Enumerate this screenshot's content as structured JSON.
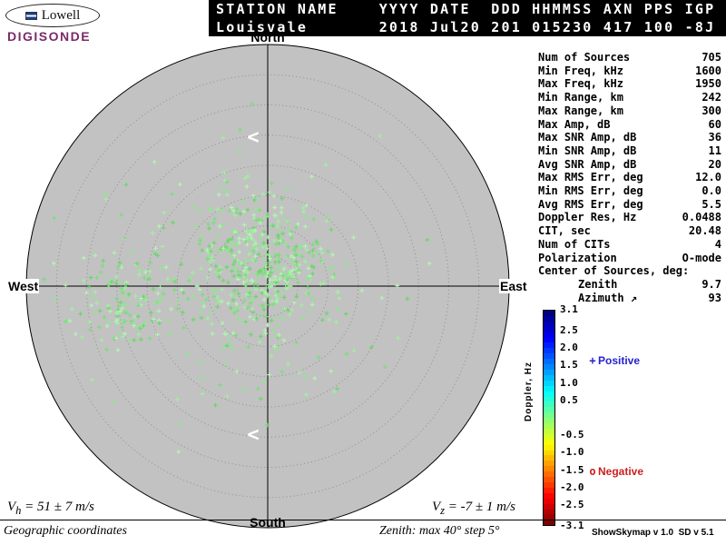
{
  "logo": {
    "name": "Lowell",
    "product": "DIGISONDE",
    "accent_color": "#7a2a68"
  },
  "header": {
    "bg_color": "#000000",
    "line1": "STATION NAME    YYYY DATE  DDD HHMMSS AXN PPS IGP",
    "line2": "Louisvale       2018 Jul20 201 015230 417 100 -8J",
    "station": "Louisvale",
    "year": "2018",
    "date": "Jul20",
    "ddd": "201",
    "hhmmss": "015230",
    "axn": "417",
    "pps": "100",
    "igp": "-8J"
  },
  "stats": {
    "rows": [
      {
        "label": "Num of Sources",
        "value": "705"
      },
      {
        "label": "Min Freq, kHz",
        "value": "1600"
      },
      {
        "label": "Max Freq, kHz",
        "value": "1950"
      },
      {
        "label": "Min Range, km",
        "value": "242"
      },
      {
        "label": "Max Range, km",
        "value": "300"
      },
      {
        "label": "Max Amp, dB",
        "value": "60"
      },
      {
        "label": "Max SNR Amp, dB",
        "value": "36"
      },
      {
        "label": "Min SNR Amp, dB",
        "value": "11"
      },
      {
        "label": "Avg SNR Amp, dB",
        "value": "20"
      },
      {
        "label": "Max RMS Err, deg",
        "value": "12.0"
      },
      {
        "label": "Min RMS Err, deg",
        "value": "0.0"
      },
      {
        "label": "Avg RMS Err, deg",
        "value": "5.5"
      },
      {
        "label": "Doppler Res, Hz",
        "value": "0.0488"
      },
      {
        "label": "CIT, sec",
        "value": "20.48"
      },
      {
        "label": "Num of CITs",
        "value": "4"
      },
      {
        "label": "Polarization",
        "value": "O-mode"
      },
      {
        "label": "Center of Sources, deg:",
        "value": ""
      },
      {
        "label": "Zenith",
        "value": "9.7",
        "indent": true
      },
      {
        "label": "Azimuth ↗",
        "value": "93",
        "indent": true
      }
    ]
  },
  "chart_data": {
    "type": "scatter",
    "title": "Digisonde skymap of reflection sources",
    "projection": "polar azimuth/zenith skymap",
    "zenith_max_deg": 40,
    "zenith_step_deg": 5,
    "compass": {
      "top": "North",
      "right": "East",
      "bottom": "South",
      "left": "West"
    },
    "num_sources": 705,
    "circle_fill": "#c2c2c2",
    "colorbar": {
      "label": "Doppler, Hz",
      "min": -3.1,
      "max": 3.1,
      "tick_labels": [
        "3.1",
        "2.5",
        "2.0",
        "1.5",
        "1.0",
        "0.5",
        "-0.5",
        "-1.0",
        "-1.5",
        "-2.0",
        "-2.5",
        "-3.1"
      ]
    },
    "point_style": {
      "symbol": "+",
      "colors": [
        "#8ee88e",
        "#7ade7a",
        "#a0f0a0",
        "#69d869",
        "#b2f5b2"
      ]
    },
    "seed": 42,
    "clusters": [
      {
        "cx": 0.0,
        "cy": -0.07,
        "sx": 0.13,
        "sy": 0.12,
        "n": 340
      },
      {
        "cx": -0.6,
        "cy": 0.09,
        "sx": 0.1,
        "sy": 0.09,
        "n": 120
      },
      {
        "cx": -0.33,
        "cy": 0.0,
        "sx": 0.18,
        "sy": 0.15,
        "n": 80
      },
      {
        "cx": -0.15,
        "cy": -0.33,
        "sx": 0.12,
        "sy": 0.1,
        "n": 55
      },
      {
        "cx": 0.02,
        "cy": 0.3,
        "sx": 0.15,
        "sy": 0.12,
        "n": 30
      },
      {
        "cx": -0.1,
        "cy": 0.0,
        "sx": 0.38,
        "sy": 0.3,
        "n": 80
      }
    ],
    "markers": [
      {
        "glyph": "<",
        "color": "#ffffff",
        "pos": [
          -0.06,
          -0.62
        ]
      },
      {
        "glyph": "<",
        "color": "#ffffff",
        "pos": [
          -0.06,
          0.61
        ]
      }
    ]
  },
  "legend": {
    "positive": {
      "symbol": "+",
      "label": "Positive",
      "color": "#2222cc"
    },
    "negative": {
      "symbol": "o",
      "label": "Negative",
      "color": "#cc2020"
    }
  },
  "footer": {
    "vh": {
      "base": "V",
      "sub": "h",
      "rest": " = 51 ± 7 m/s"
    },
    "vz": {
      "base": "V",
      "sub": "z",
      "rest": " = -7 ± 1 m/s"
    },
    "coords": "Geographic coordinates",
    "zenith_note": "Zenith: max 40°  step 5°",
    "version": "ShowSkymap v 1.0  SD v 5.1"
  }
}
